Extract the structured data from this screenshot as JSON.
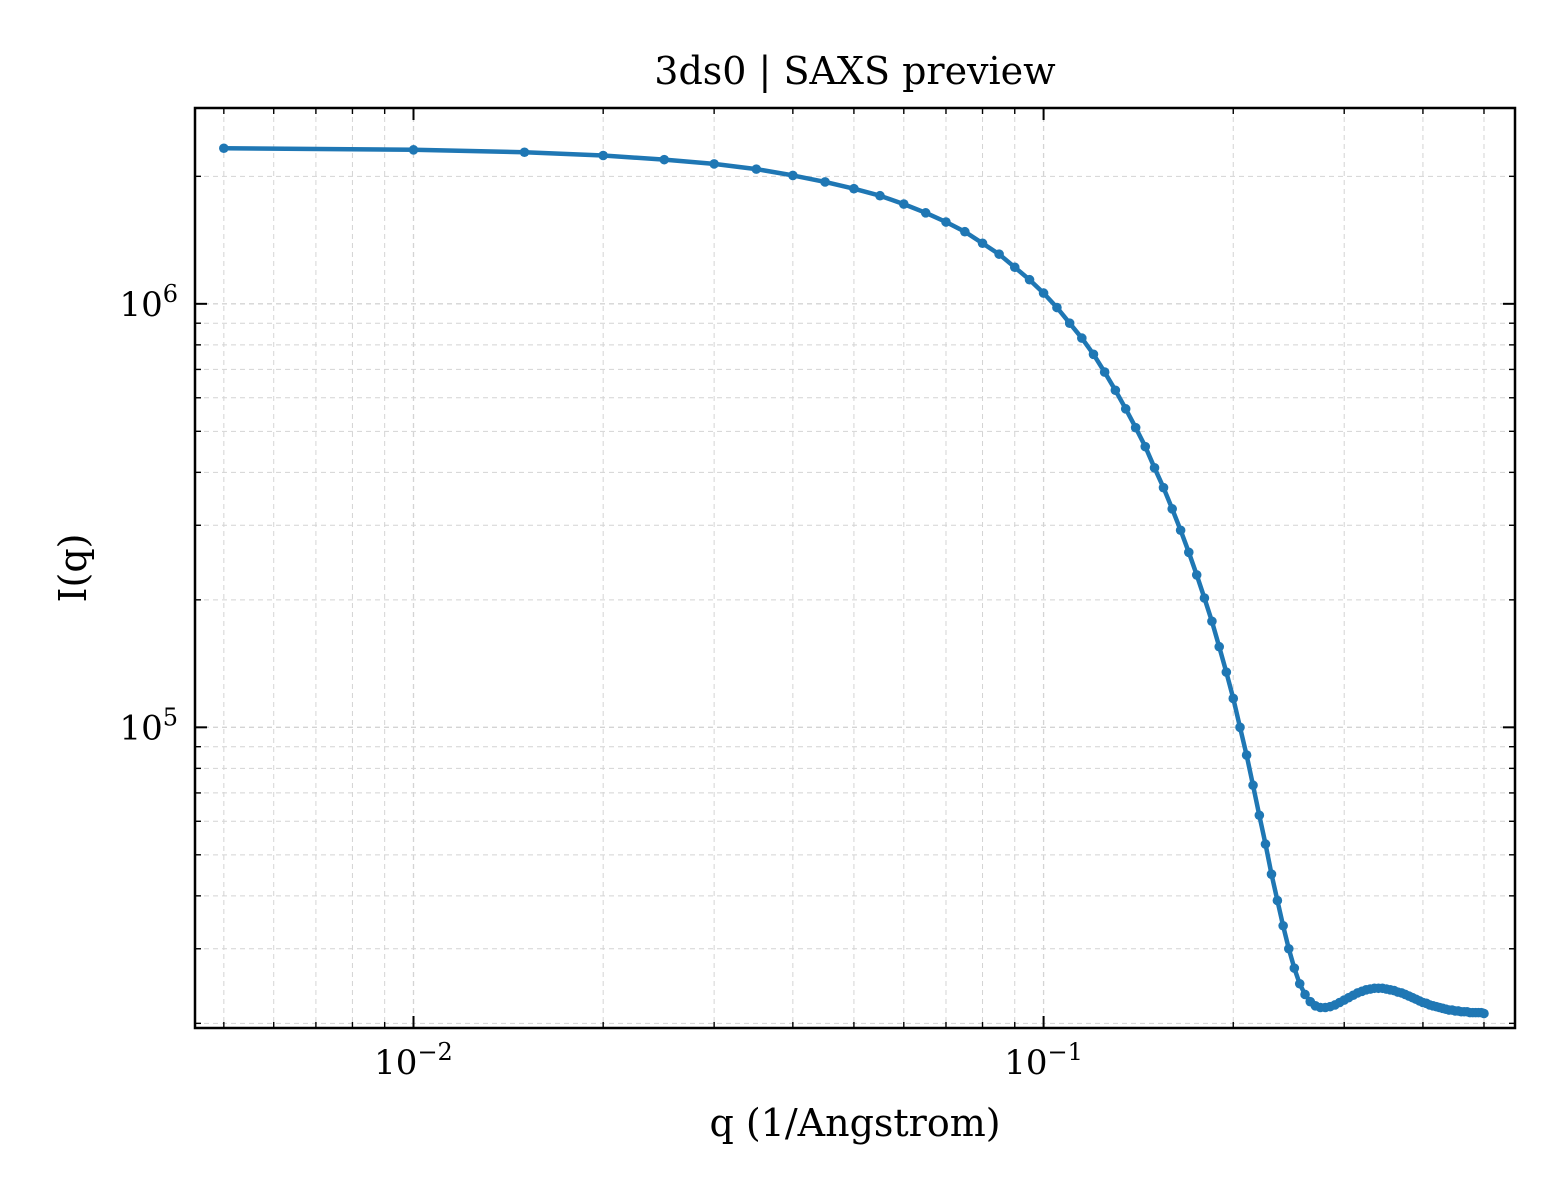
{
  "chart_data": {
    "type": "line",
    "title": "3ds0 | SAXS preview",
    "xlabel": "q (1/Angstrom)",
    "ylabel": "I(q)",
    "x_scale": "log",
    "y_scale": "log",
    "xlim": [
      0.0045,
      0.56
    ],
    "ylim": [
      19500,
      2900000
    ],
    "grid": "major and minor, dashed",
    "legend": "none",
    "line_color": "#1f77b4",
    "x_ticks": [
      {
        "value": 0.01,
        "base": "10",
        "exp": "−2"
      },
      {
        "value": 0.1,
        "base": "10",
        "exp": "−1"
      }
    ],
    "y_ticks": [
      {
        "value": 100000,
        "base": "10",
        "exp": "5"
      },
      {
        "value": 1000000,
        "base": "10",
        "exp": "6"
      }
    ],
    "series": [
      {
        "x": [
          0.005,
          0.01,
          0.015,
          0.02,
          0.025,
          0.03,
          0.035,
          0.04,
          0.045,
          0.05,
          0.055,
          0.06,
          0.065,
          0.07,
          0.075,
          0.08,
          0.085,
          0.09,
          0.095,
          0.1,
          0.105,
          0.11,
          0.115,
          0.12,
          0.125,
          0.13,
          0.135,
          0.14,
          0.145,
          0.15,
          0.155,
          0.16,
          0.165,
          0.17,
          0.175,
          0.18,
          0.185,
          0.19,
          0.195,
          0.2,
          0.205,
          0.21,
          0.215,
          0.22,
          0.225,
          0.23,
          0.235,
          0.24,
          0.245,
          0.25,
          0.255,
          0.26,
          0.265,
          0.27,
          0.275,
          0.28,
          0.285,
          0.29,
          0.295,
          0.3,
          0.305,
          0.31,
          0.315,
          0.32,
          0.325,
          0.33,
          0.335,
          0.34,
          0.345,
          0.35,
          0.355,
          0.36,
          0.365,
          0.37,
          0.375,
          0.38,
          0.385,
          0.39,
          0.395,
          0.4,
          0.405,
          0.41,
          0.415,
          0.42,
          0.425,
          0.43,
          0.435,
          0.44,
          0.445,
          0.45,
          0.455,
          0.46,
          0.465,
          0.47,
          0.475,
          0.48,
          0.485,
          0.49,
          0.495,
          0.5
        ],
        "y": [
          2330000,
          2310000,
          2280000,
          2240000,
          2190000,
          2140000,
          2080000,
          2010000,
          1940000,
          1870000,
          1800000,
          1720000,
          1640000,
          1560000,
          1480000,
          1390000,
          1310000,
          1220000,
          1140000,
          1060000,
          980000,
          900000,
          830000,
          760000,
          690000,
          625000,
          565000,
          510000,
          460000,
          410000,
          368000,
          328000,
          292000,
          259000,
          229000,
          202000,
          178000,
          155000,
          135000,
          117000,
          100000,
          86000,
          73000,
          62000,
          53000,
          45000,
          39000,
          34000,
          30000,
          27000,
          24800,
          23400,
          22500,
          22000,
          21800,
          21800,
          21900,
          22100,
          22400,
          22700,
          23000,
          23300,
          23600,
          23800,
          24000,
          24100,
          24200,
          24200,
          24200,
          24100,
          24000,
          23900,
          23700,
          23600,
          23400,
          23200,
          23000,
          22800,
          22600,
          22400,
          22300,
          22100,
          22000,
          21900,
          21800,
          21700,
          21600,
          21500,
          21500,
          21400,
          21400,
          21300,
          21300,
          21300,
          21200,
          21200,
          21200,
          21200,
          21200,
          21100
        ]
      }
    ]
  }
}
